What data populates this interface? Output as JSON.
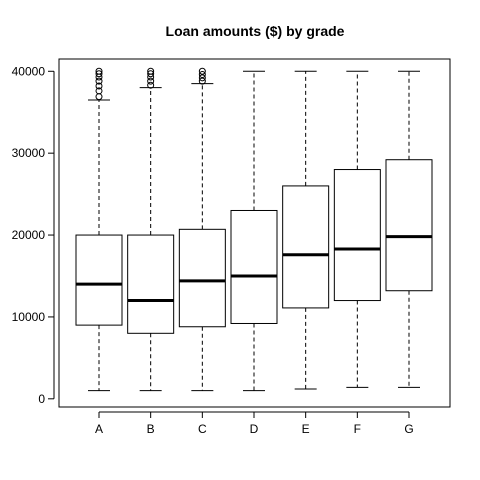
{
  "chart_data": {
    "type": "box",
    "title": "Loan amounts ($) by grade",
    "xlabel": "",
    "ylabel": "",
    "ylim": [
      -1000,
      41500
    ],
    "y_ticks": [
      0,
      10000,
      20000,
      30000,
      40000
    ],
    "y_tick_labels": [
      "0",
      "10000",
      "20000",
      "30000",
      "40000"
    ],
    "categories": [
      "A",
      "B",
      "C",
      "D",
      "E",
      "F",
      "G"
    ],
    "boxes": [
      {
        "name": "A",
        "min": 1000,
        "q1": 9000,
        "median": 14000,
        "q3": 20000,
        "max": 36500,
        "outliers": [
          36900,
          37600,
          38200,
          38800,
          39300,
          39700,
          40000
        ]
      },
      {
        "name": "B",
        "min": 1000,
        "q1": 8000,
        "median": 12000,
        "q3": 20000,
        "max": 38000,
        "outliers": [
          38300,
          38800,
          39300,
          39700,
          40000
        ]
      },
      {
        "name": "C",
        "min": 1000,
        "q1": 8800,
        "median": 14400,
        "q3": 20700,
        "max": 38500,
        "outliers": [
          38800,
          39200,
          39600,
          40000
        ]
      },
      {
        "name": "D",
        "min": 1000,
        "q1": 9200,
        "median": 15000,
        "q3": 23000,
        "max": 40000,
        "outliers": []
      },
      {
        "name": "E",
        "min": 1200,
        "q1": 11100,
        "median": 17600,
        "q3": 26000,
        "max": 40000,
        "outliers": []
      },
      {
        "name": "F",
        "min": 1400,
        "q1": 12000,
        "median": 18300,
        "q3": 28000,
        "max": 40000,
        "outliers": []
      },
      {
        "name": "G",
        "min": 1400,
        "q1": 13200,
        "median": 19800,
        "q3": 29200,
        "max": 40000,
        "outliers": []
      }
    ],
    "grid": false,
    "legend": "none"
  }
}
